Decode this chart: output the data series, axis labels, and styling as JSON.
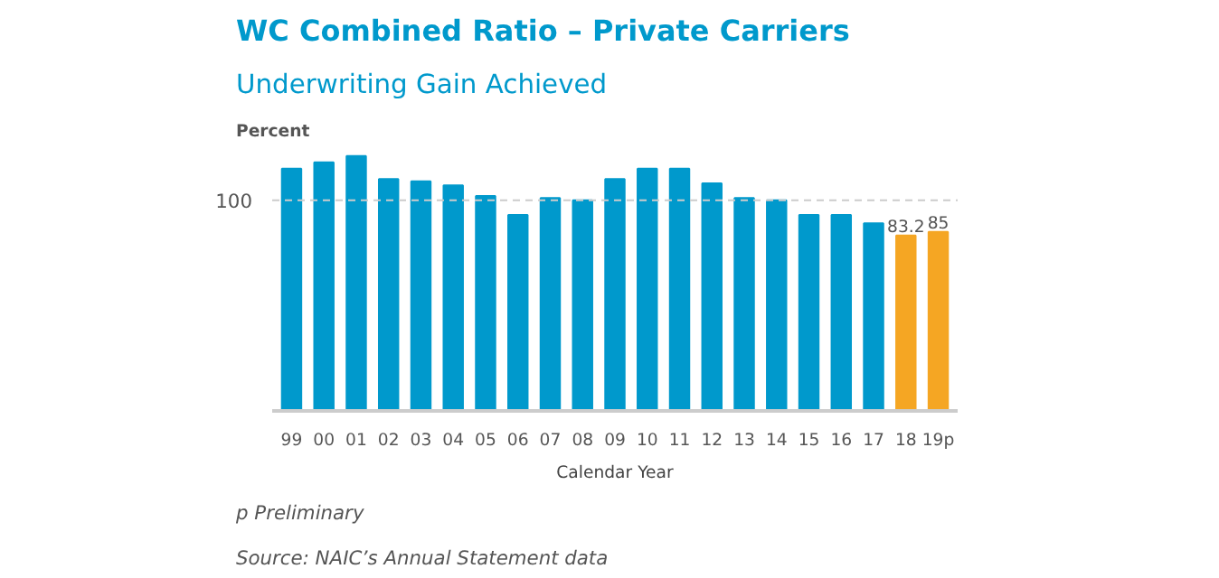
{
  "chart_data": {
    "type": "bar",
    "title": "WC Combined Ratio – Private Carriers",
    "subtitle": "Underwriting Gain Achieved",
    "ylabel": "Percent",
    "xlabel": "Calendar Year",
    "categories": [
      "99",
      "00",
      "01",
      "02",
      "03",
      "04",
      "05",
      "06",
      "07",
      "08",
      "09",
      "10",
      "11",
      "12",
      "13",
      "14",
      "15",
      "16",
      "17",
      "18",
      "19p"
    ],
    "values": [
      115,
      118,
      121,
      110,
      109,
      107,
      102,
      93,
      101,
      100,
      110,
      115,
      115,
      108,
      101,
      100,
      93,
      93,
      89,
      83.2,
      85
    ],
    "colors": [
      "#0099cc",
      "#0099cc",
      "#0099cc",
      "#0099cc",
      "#0099cc",
      "#0099cc",
      "#0099cc",
      "#0099cc",
      "#0099cc",
      "#0099cc",
      "#0099cc",
      "#0099cc",
      "#0099cc",
      "#0099cc",
      "#0099cc",
      "#0099cc",
      "#0099cc",
      "#0099cc",
      "#0099cc",
      "#f5a623",
      "#f5a623"
    ],
    "value_labels": [
      null,
      null,
      null,
      null,
      null,
      null,
      null,
      null,
      null,
      null,
      null,
      null,
      null,
      null,
      null,
      null,
      null,
      null,
      null,
      "83.2",
      "85"
    ],
    "ref_lines": [
      {
        "axis": "y",
        "value": 100,
        "label": "100",
        "color": "#cccccc",
        "line_style": "dashed"
      }
    ],
    "annotations": [
      "p Preliminary",
      "Source: NAIC’s Annual Statement data"
    ]
  }
}
